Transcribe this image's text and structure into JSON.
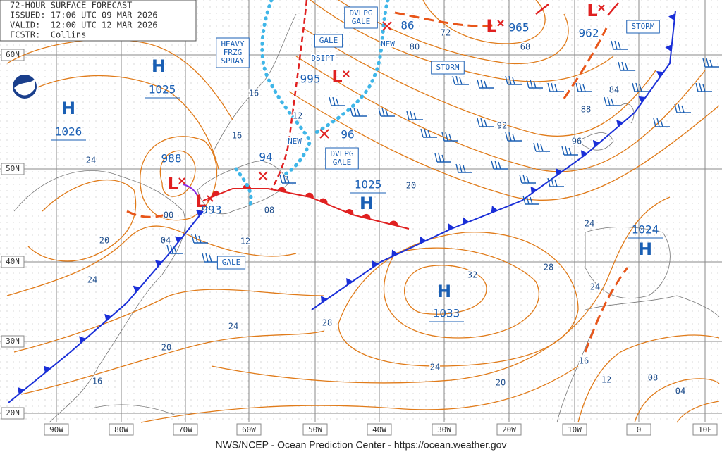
{
  "header": {
    "lines": [
      "72-HOUR SURFACE FORECAST",
      "ISSUED: 17:06 UTC 09 MAR 2026",
      "VALID:  12:00 UTC 12 MAR 2026",
      "FCSTR:  Collins"
    ]
  },
  "centers": [
    {
      "symbol": "H",
      "pressure": "1025"
    },
    {
      "symbol": "H",
      "pressure": "1026"
    },
    {
      "symbol": "H",
      "pressure": "1025"
    },
    {
      "symbol": "H",
      "pressure": "1033"
    },
    {
      "symbol": "H",
      "pressure": "1024"
    },
    {
      "symbol": "L",
      "pressure": "988"
    },
    {
      "symbol": "L",
      "pressure": "993"
    },
    {
      "symbol": "L",
      "pressure": "995"
    },
    {
      "symbol": "L",
      "pressure": "965"
    },
    {
      "symbol": "L",
      "pressure": "962"
    }
  ],
  "warnings": [
    {
      "lines": [
        "HEAVY",
        "FRZG",
        "SPRAY"
      ]
    },
    {
      "lines": [
        "GALE"
      ]
    },
    {
      "lines": [
        "DVLPG",
        "GALE"
      ]
    },
    {
      "lines": [
        "STORM"
      ]
    },
    {
      "lines": [
        "STORM"
      ]
    },
    {
      "lines": [
        "DVLPG",
        "GALE"
      ]
    },
    {
      "lines": [
        "GALE"
      ]
    }
  ],
  "isobar_labels": [
    "72",
    "80",
    "68",
    "84",
    "88",
    "92",
    "96",
    "16",
    "12",
    "16",
    "24",
    "00",
    "20",
    "04",
    "08",
    "12",
    "20",
    "24",
    "28",
    "32",
    "24",
    "24",
    "28",
    "24",
    "20",
    "24",
    "16",
    "20",
    "16",
    "12",
    "08",
    "04"
  ],
  "annotations": [
    "86",
    "96",
    "94",
    "NEW",
    "NEW",
    "DSIPT"
  ],
  "latitudes": [
    "60N",
    "50N",
    "40N",
    "30N",
    "20N"
  ],
  "longitudes": [
    "90W",
    "80W",
    "70W",
    "60W",
    "50W",
    "40W",
    "30W",
    "20W",
    "10W",
    "0",
    "10E"
  ],
  "footer": "NWS/NCEP - Ocean Prediction Center - https://ocean.weather.gov"
}
